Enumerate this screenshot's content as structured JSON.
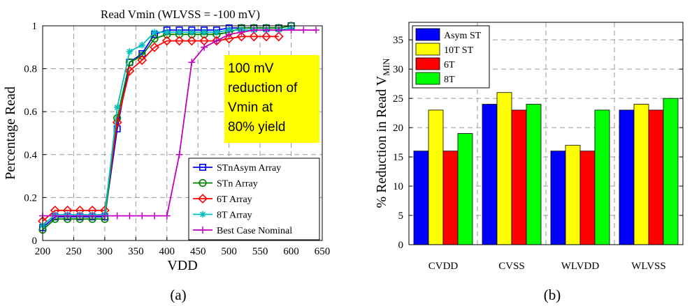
{
  "chart_data": [
    {
      "type": "line",
      "title": "Read Vmin (WLVSS = -100 mV)",
      "xlabel": "VDD",
      "ylabel": "Percentage Read",
      "xlim": [
        200,
        650
      ],
      "ylim": [
        0,
        1
      ],
      "xticks": [
        200,
        250,
        300,
        350,
        400,
        450,
        500,
        550,
        600,
        650
      ],
      "yticks": [
        0,
        0.2,
        0.4,
        0.6,
        0.8,
        1
      ],
      "ytick_labels": [
        "0",
        "0.2",
        "0.4",
        "0.6",
        "0.8",
        "1"
      ],
      "grid": true,
      "legend_position": "bottom-right",
      "annotation": [
        "100 mV",
        "reduction of",
        "Vmin at",
        "80% yield"
      ],
      "annotation_color": "#ffff00",
      "series": [
        {
          "name": "STnAsym Array",
          "color": "#0000ff",
          "marker": "square",
          "x": [
            200,
            220,
            240,
            260,
            280,
            300,
            320,
            340,
            360,
            380,
            400,
            420,
            440,
            460,
            480,
            500,
            520,
            540,
            560,
            580,
            600
          ],
          "y": [
            0.06,
            0.11,
            0.11,
            0.11,
            0.11,
            0.11,
            0.52,
            0.83,
            0.87,
            0.96,
            0.98,
            0.98,
            0.98,
            0.98,
            0.98,
            0.99,
            0.99,
            0.99,
            0.99,
            0.99,
            1.0
          ]
        },
        {
          "name": "STn Array",
          "color": "#008000",
          "marker": "circle",
          "x": [
            200,
            220,
            240,
            260,
            280,
            300,
            320,
            340,
            360,
            380,
            400,
            420,
            440,
            460,
            480,
            500,
            520,
            540,
            560,
            580,
            600
          ],
          "y": [
            0.05,
            0.1,
            0.1,
            0.1,
            0.1,
            0.1,
            0.57,
            0.83,
            0.86,
            0.94,
            0.96,
            0.96,
            0.96,
            0.96,
            0.96,
            0.97,
            0.99,
            0.99,
            0.99,
            0.99,
            1.0
          ]
        },
        {
          "name": "6T Array",
          "color": "#ff0000",
          "marker": "diamond",
          "x": [
            200,
            220,
            240,
            260,
            280,
            300,
            320,
            340,
            360,
            380,
            400,
            420,
            440,
            460,
            480,
            500,
            520,
            540,
            560,
            580
          ],
          "y": [
            0.09,
            0.14,
            0.14,
            0.14,
            0.14,
            0.14,
            0.55,
            0.79,
            0.84,
            0.9,
            0.93,
            0.93,
            0.93,
            0.93,
            0.93,
            0.94,
            0.95,
            0.95,
            0.95,
            0.95
          ]
        },
        {
          "name": "8T Array",
          "color": "#00bfbf",
          "marker": "asterisk",
          "x": [
            200,
            220,
            240,
            260,
            280,
            300,
            320,
            340,
            360,
            380,
            400,
            420,
            440,
            460,
            480,
            500,
            520,
            540,
            560,
            580,
            600
          ],
          "y": [
            0.07,
            0.12,
            0.12,
            0.12,
            0.12,
            0.12,
            0.62,
            0.88,
            0.91,
            0.97,
            0.97,
            0.97,
            0.97,
            0.97,
            0.97,
            0.98,
            0.98,
            0.98,
            0.98,
            0.98,
            0.99
          ]
        },
        {
          "name": "Best Case Nominal",
          "color": "#bf00bf",
          "marker": "plus",
          "x": [
            200,
            220,
            240,
            260,
            280,
            300,
            320,
            340,
            360,
            380,
            400,
            420,
            440,
            460,
            480,
            500,
            520,
            540,
            560,
            580,
            600,
            620,
            640
          ],
          "y": [
            0.115,
            0.115,
            0.115,
            0.115,
            0.115,
            0.115,
            0.115,
            0.115,
            0.115,
            0.115,
            0.115,
            0.4,
            0.83,
            0.9,
            0.93,
            0.96,
            0.97,
            0.98,
            0.98,
            0.98,
            0.98,
            0.98,
            0.98
          ]
        }
      ]
    },
    {
      "type": "bar",
      "xlabel": "",
      "ylabel_main": "% Reduction in Read V",
      "ylabel_sub": "MIN",
      "ylim": [
        0,
        38
      ],
      "yticks": [
        0,
        5,
        10,
        15,
        20,
        25,
        30,
        35
      ],
      "grid": true,
      "legend_position": "top-left",
      "categories": [
        "CVDD",
        "CVSS",
        "WLVDD",
        "WLVSS"
      ],
      "series": [
        {
          "name": "Asym ST",
          "color": "#0000ff",
          "values": [
            16,
            24,
            16,
            23
          ]
        },
        {
          "name": "10T ST",
          "color": "#ffff00",
          "values": [
            23,
            26,
            17,
            24
          ]
        },
        {
          "name": "6T",
          "color": "#ff0000",
          "values": [
            16,
            23,
            16,
            23
          ]
        },
        {
          "name": "8T",
          "color": "#00ff00",
          "values": [
            19,
            24,
            23,
            25
          ]
        }
      ]
    }
  ],
  "panel_labels": [
    "(a)",
    "(b)"
  ]
}
